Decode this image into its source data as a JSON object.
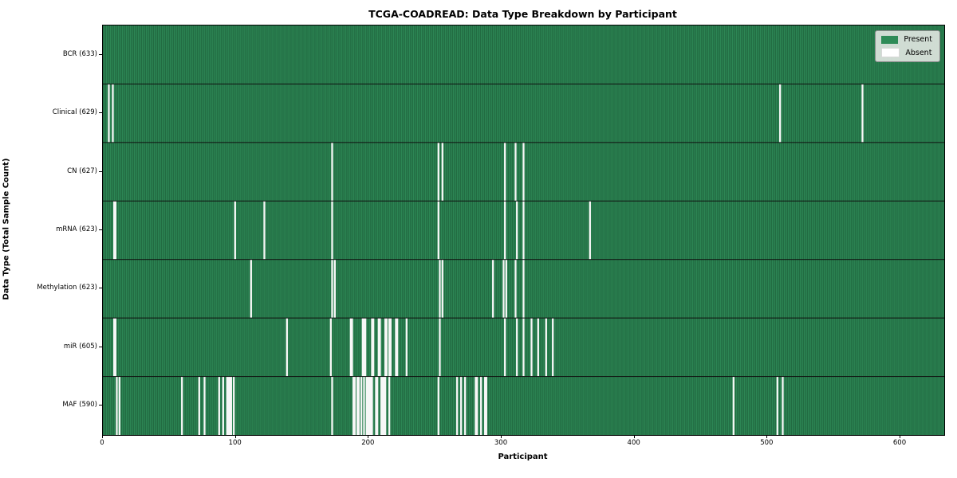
{
  "chart_data": {
    "type": "heatmap",
    "title": "TCGA-COADREAD: Data Type Breakdown by Participant",
    "xlabel": "Participant",
    "ylabel": "Data Type (Total Sample Count)",
    "x_range": [
      0,
      633
    ],
    "x_ticks": [
      0,
      100,
      200,
      300,
      400,
      500,
      600
    ],
    "n_participants": 633,
    "grid": false,
    "legend_position": "upper right",
    "legend": [
      {
        "label": "Present",
        "color": "#2e8b57"
      },
      {
        "label": "Absent",
        "color": "#ffffff"
      }
    ],
    "colors": {
      "present": "#2e8b57",
      "present_dark": "#1d5c39",
      "absent": "#f7f7f7",
      "separator": "#101010"
    },
    "rows": [
      {
        "name": "BCR",
        "label": "BCR (633)",
        "present_count": 633,
        "absent_participants": []
      },
      {
        "name": "Clinical",
        "label": "Clinical (629)",
        "present_count": 629,
        "absent_participants": [
          4,
          7,
          509,
          571
        ]
      },
      {
        "name": "CN",
        "label": "CN (627)",
        "present_count": 627,
        "absent_participants": [
          172,
          252,
          255,
          302,
          310,
          316
        ]
      },
      {
        "name": "mRNA",
        "label": "mRNA (623)",
        "present_count": 623,
        "absent_participants": [
          8,
          9,
          99,
          121,
          172,
          252,
          302,
          311,
          316,
          366
        ]
      },
      {
        "name": "Methylation",
        "label": "Methylation (623)",
        "present_count": 623,
        "absent_participants": [
          111,
          172,
          174,
          253,
          255,
          293,
          301,
          303,
          310,
          316
        ]
      },
      {
        "name": "miR",
        "label": "miR (605)",
        "present_count": 605,
        "absent_participants": [
          8,
          9,
          138,
          171,
          186,
          187,
          195,
          196,
          197,
          202,
          203,
          207,
          208,
          212,
          213,
          215,
          216,
          220,
          221,
          228,
          253,
          302,
          311,
          316,
          322,
          327,
          333,
          338
        ]
      },
      {
        "name": "MAF",
        "label": "MAF (590)",
        "present_count": 590,
        "absent_participants": [
          10,
          12,
          59,
          72,
          76,
          87,
          90,
          93,
          94,
          95,
          96,
          98,
          172,
          188,
          189,
          191,
          192,
          194,
          196,
          198,
          199,
          200,
          201,
          202,
          205,
          206,
          209,
          210,
          211,
          212,
          215,
          252,
          266,
          269,
          272,
          280,
          281,
          284,
          287,
          288,
          474,
          507,
          511
        ]
      }
    ]
  }
}
